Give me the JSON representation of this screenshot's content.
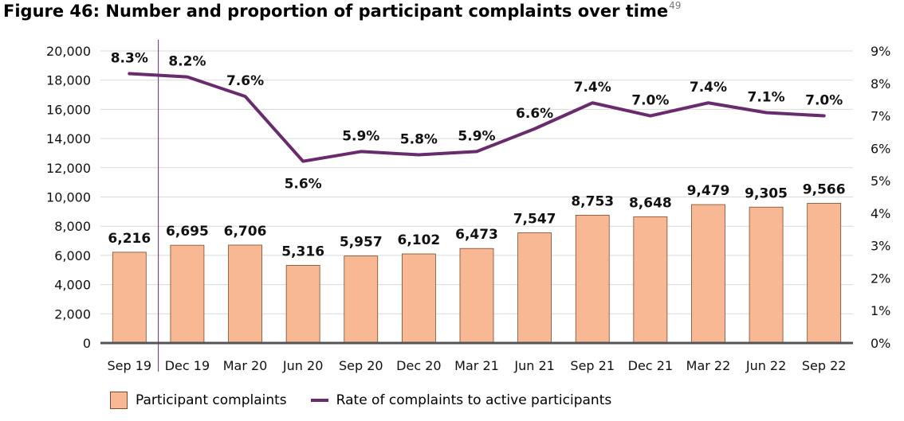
{
  "title": "Figure 46: Number and proportion of participant complaints over time",
  "footnote": "49",
  "colors": {
    "bar": "#f9b894",
    "bar_stroke": "#7a4a2a",
    "line": "#6a2a6e",
    "axis": "#555555"
  },
  "chart_data": {
    "type": "bar",
    "categories": [
      "Sep 19",
      "Dec 19",
      "Mar 20",
      "Jun 20",
      "Sep 20",
      "Dec 20",
      "Mar 21",
      "Jun 21",
      "Sep 21",
      "Dec 21",
      "Mar 22",
      "Jun 22",
      "Sep 22"
    ],
    "series": [
      {
        "name": "Participant complaints",
        "type": "bar",
        "axis": "left",
        "values": [
          6216,
          6695,
          6706,
          5316,
          5957,
          6102,
          6473,
          7547,
          8753,
          8648,
          9479,
          9305,
          9566
        ],
        "labels": [
          "6,216",
          "6,695",
          "6,706",
          "5,316",
          "5,957",
          "6,102",
          "6,473",
          "7,547",
          "8,753",
          "8,648",
          "9,479",
          "9,305",
          "9,566"
        ]
      },
      {
        "name": "Rate of complaints to active participants",
        "type": "line",
        "axis": "right",
        "values": [
          8.3,
          8.2,
          7.6,
          5.6,
          5.9,
          5.8,
          5.9,
          6.6,
          7.4,
          7.0,
          7.4,
          7.1,
          7.0
        ],
        "labels": [
          "8.3%",
          "8.2%",
          "7.6%",
          "5.6%",
          "5.9%",
          "5.8%",
          "5.9%",
          "6.6%",
          "7.4%",
          "7.0%",
          "7.4%",
          "7.1%",
          "7.0%"
        ]
      }
    ],
    "y_left": {
      "ylim": [
        0,
        20000
      ],
      "ticks": [
        "0",
        "2,000",
        "4,000",
        "6,000",
        "8,000",
        "10,000",
        "12,000",
        "14,000",
        "16,000",
        "18,000",
        "20,000"
      ]
    },
    "y_right": {
      "ylim": [
        0,
        9
      ],
      "ticks": [
        "0%",
        "1%",
        "2%",
        "3%",
        "4%",
        "5%",
        "6%",
        "7%",
        "8%",
        "9%"
      ]
    },
    "grid": true,
    "legend": "bottom-left",
    "divider_after": "Sep 19"
  }
}
